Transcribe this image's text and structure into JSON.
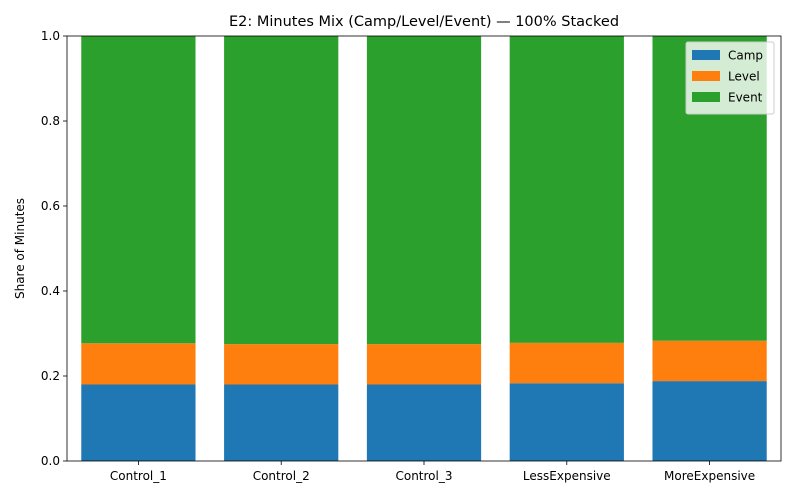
{
  "chart_data": {
    "type": "bar",
    "stacked": true,
    "title": "E2: Minutes Mix (Camp/Level/Event) — 100% Stacked",
    "xlabel": "",
    "ylabel": "Share of Minutes",
    "ylim": [
      0,
      1.0
    ],
    "yticks": [
      "0.0",
      "0.2",
      "0.4",
      "0.6",
      "0.8",
      "1.0"
    ],
    "grid": false,
    "legend_position": "top-right",
    "categories": [
      "Control_1",
      "Control_2",
      "Control_3",
      "LessExpensive",
      "MoreExpensive"
    ],
    "series": [
      {
        "name": "Camp",
        "color": "#1f77b4",
        "values": [
          0.18,
          0.18,
          0.18,
          0.183,
          0.188
        ]
      },
      {
        "name": "Level",
        "color": "#ff7f0e",
        "values": [
          0.097,
          0.095,
          0.095,
          0.095,
          0.095
        ]
      },
      {
        "name": "Event",
        "color": "#2ca02c",
        "values": [
          0.723,
          0.725,
          0.725,
          0.722,
          0.717
        ]
      }
    ]
  }
}
